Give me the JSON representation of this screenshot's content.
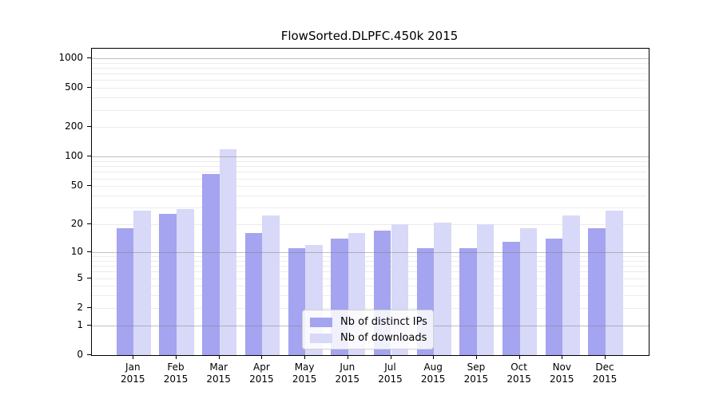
{
  "chart_data": {
    "type": "bar",
    "title": "FlowSorted.DLPFC.450k 2015",
    "categories": [
      "Jan",
      "Feb",
      "Mar",
      "Apr",
      "May",
      "Jun",
      "Jul",
      "Aug",
      "Sep",
      "Oct",
      "Nov",
      "Dec"
    ],
    "x_year": "2015",
    "series": [
      {
        "name": "Nb of distinct IPs",
        "color": "#a4a4f0",
        "values": [
          18,
          26,
          67,
          16,
          11,
          14,
          17,
          11,
          11,
          13,
          14,
          18
        ]
      },
      {
        "name": "Nb of downloads",
        "color": "#d8d8f8",
        "values": [
          28,
          29,
          120,
          25,
          12,
          16,
          20,
          21,
          20,
          18,
          25,
          28
        ]
      }
    ],
    "y_ticks": [
      0,
      1,
      2,
      5,
      10,
      20,
      50,
      100,
      200,
      500,
      1000
    ],
    "y_scale": "log1p",
    "ylim": [
      0,
      1000
    ],
    "grid": true,
    "legend_position": "inside-bottom-center"
  },
  "colors": {
    "bar_distinct_ips": "#a4a4f0",
    "bar_downloads": "#d8d8f8",
    "major_grid": "#828282",
    "minor_grid": "#ececec",
    "axis": "#000000",
    "background": "#ffffff"
  }
}
